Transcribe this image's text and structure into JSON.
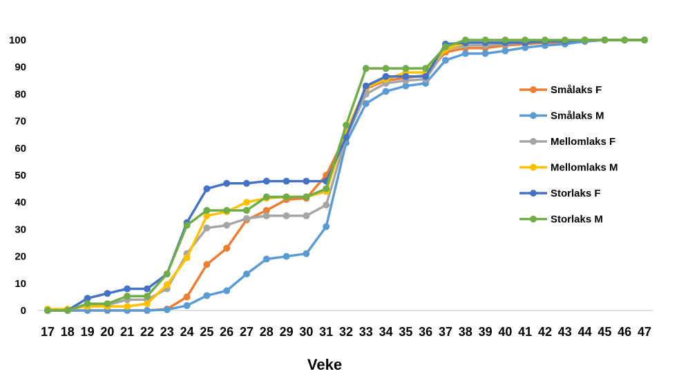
{
  "chart_data": {
    "type": "line",
    "xlabel": "Veke",
    "ylabel": "",
    "title": "",
    "ylim": [
      0,
      100
    ],
    "yticks": [
      0,
      10,
      20,
      30,
      40,
      50,
      60,
      70,
      80,
      90,
      100
    ],
    "x": [
      "17",
      "18",
      "19",
      "20",
      "21",
      "22",
      "23",
      "24",
      "25",
      "26",
      "27",
      "28",
      "29",
      "30",
      "31",
      "32",
      "33",
      "34",
      "35",
      "36",
      "37",
      "38",
      "39",
      "40",
      "41",
      "42",
      "43",
      "44",
      "45",
      "46",
      "47"
    ],
    "grid": false,
    "legend_position": "right",
    "series": [
      {
        "name": "Smålaks F",
        "color": "#ED7D31",
        "values": [
          0,
          0,
          0,
          0,
          0,
          0,
          0.5,
          5,
          17,
          23,
          33.5,
          37,
          41,
          41.5,
          50,
          65,
          82,
          85,
          86,
          87,
          95.5,
          97,
          97,
          98,
          98.5,
          99,
          99,
          99.5,
          100,
          100,
          100
        ]
      },
      {
        "name": "Smålaks M",
        "color": "#5B9BD5",
        "values": [
          0,
          0,
          0,
          0,
          0,
          0,
          0.3,
          1.8,
          5.5,
          7.3,
          13.5,
          19,
          20,
          21,
          31,
          62,
          76.5,
          81,
          83,
          84,
          92.5,
          95,
          95,
          96,
          97.2,
          98,
          98.5,
          99.5,
          100,
          100,
          100
        ]
      },
      {
        "name": "Mellomlaks F",
        "color": "#A5A5A5",
        "values": [
          0,
          0,
          2,
          2,
          4,
          4,
          8,
          21,
          30.5,
          31.5,
          34,
          35,
          35,
          35,
          39,
          64,
          80,
          84,
          85,
          85.5,
          96.5,
          98,
          98,
          98.5,
          99,
          99.5,
          99.5,
          100,
          100,
          100,
          100
        ]
      },
      {
        "name": "Mellomlaks M",
        "color": "#FFC000",
        "values": [
          0.5,
          0.5,
          1.5,
          1.5,
          1.5,
          2.5,
          9.5,
          19.5,
          35,
          36.5,
          40,
          41.5,
          42,
          42,
          44,
          66,
          82.5,
          85.5,
          88,
          88,
          96.5,
          99,
          99,
          99,
          99.5,
          99.5,
          99.5,
          100,
          100,
          100,
          100
        ]
      },
      {
        "name": "Storlaks F",
        "color": "#4472C4",
        "values": [
          0,
          0,
          4.5,
          6.3,
          8,
          8,
          13.5,
          32.5,
          45,
          47,
          47,
          47.8,
          47.8,
          47.8,
          47.8,
          64,
          83,
          86.5,
          86.5,
          86.5,
          98.5,
          99,
          99,
          99,
          99,
          99.5,
          99.5,
          100,
          100,
          100,
          100
        ]
      },
      {
        "name": "Storlaks M",
        "color": "#70AD47",
        "values": [
          0,
          0,
          2.5,
          2.5,
          5.3,
          5.3,
          13.5,
          31.5,
          37,
          37,
          37,
          42,
          42,
          42,
          45,
          68.5,
          89.5,
          89.5,
          89.5,
          89.5,
          97.5,
          100,
          100,
          100,
          100,
          100,
          100,
          100,
          100,
          100,
          100
        ]
      }
    ]
  }
}
